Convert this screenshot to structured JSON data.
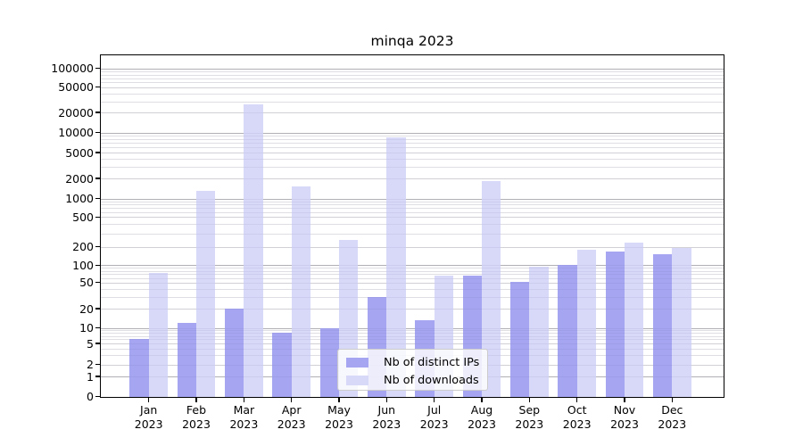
{
  "chart_data": {
    "type": "bar",
    "title": "minqa 2023",
    "x": {
      "months": [
        "Jan",
        "Feb",
        "Mar",
        "Apr",
        "May",
        "Jun",
        "Jul",
        "Aug",
        "Sep",
        "Oct",
        "Nov",
        "Dec"
      ],
      "year": "2023"
    },
    "series": [
      {
        "name": "Nb of distinct IPs",
        "color": "#a5a5f1",
        "values": [
          6,
          12,
          20,
          8,
          10,
          30,
          13,
          65,
          52,
          100,
          170,
          150
        ]
      },
      {
        "name": "Nb of downloads",
        "color": "#d8d8f8",
        "values": [
          72,
          1300,
          27000,
          1500,
          250,
          8400,
          65,
          1850,
          95,
          180,
          230,
          190
        ]
      }
    ],
    "y_axis": {
      "scale": "symlog",
      "tick_values": [
        0,
        1,
        2,
        5,
        10,
        20,
        50,
        100,
        200,
        500,
        1000,
        2000,
        5000,
        10000,
        20000,
        50000,
        100000
      ],
      "ylim": [
        0,
        160000
      ]
    },
    "legend": {
      "location": "lower center inside plot",
      "entries": [
        "Nb of distinct IPs",
        "Nb of downloads"
      ]
    },
    "grid": "both",
    "grid_colors": {
      "decade": "#bbbbbb",
      "labeled": "#dddddd",
      "minor": "#ececec"
    }
  }
}
